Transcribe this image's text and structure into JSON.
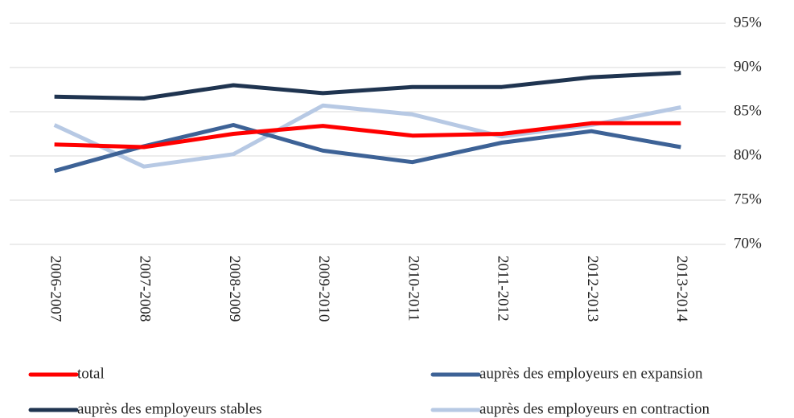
{
  "chart_data": {
    "type": "line",
    "categories": [
      "2006-2007",
      "2007-2008",
      "2008-2009",
      "2009-2010",
      "2010-2011",
      "2011-2012",
      "2012-2013",
      "2013-2014"
    ],
    "series": [
      {
        "name": "total",
        "color": "#ff0000",
        "values": [
          81.3,
          81.0,
          82.5,
          83.4,
          82.3,
          82.5,
          83.7,
          83.7
        ]
      },
      {
        "name": "auprès des employeurs en expansion",
        "color": "#3d6296",
        "values": [
          78.3,
          81.1,
          83.5,
          80.6,
          79.3,
          81.5,
          82.8,
          81.0
        ]
      },
      {
        "name": "auprès des employeurs stables",
        "color": "#1f3450",
        "values": [
          86.7,
          86.5,
          88.0,
          87.1,
          87.8,
          87.8,
          88.9,
          89.4
        ]
      },
      {
        "name": "auprès des employeurs en contraction",
        "color": "#b7c9e4",
        "values": [
          83.5,
          78.8,
          80.2,
          85.7,
          84.7,
          82.2,
          83.5,
          85.5
        ]
      }
    ],
    "ylim": [
      70,
      95
    ],
    "yticks": [
      {
        "value": 70,
        "label": "70%"
      },
      {
        "value": 75,
        "label": "75%"
      },
      {
        "value": 80,
        "label": "80%"
      },
      {
        "value": 85,
        "label": "85%"
      },
      {
        "value": 90,
        "label": "90%"
      },
      {
        "value": 95,
        "label": "95%"
      }
    ],
    "grid": true,
    "legend": "bottom"
  }
}
